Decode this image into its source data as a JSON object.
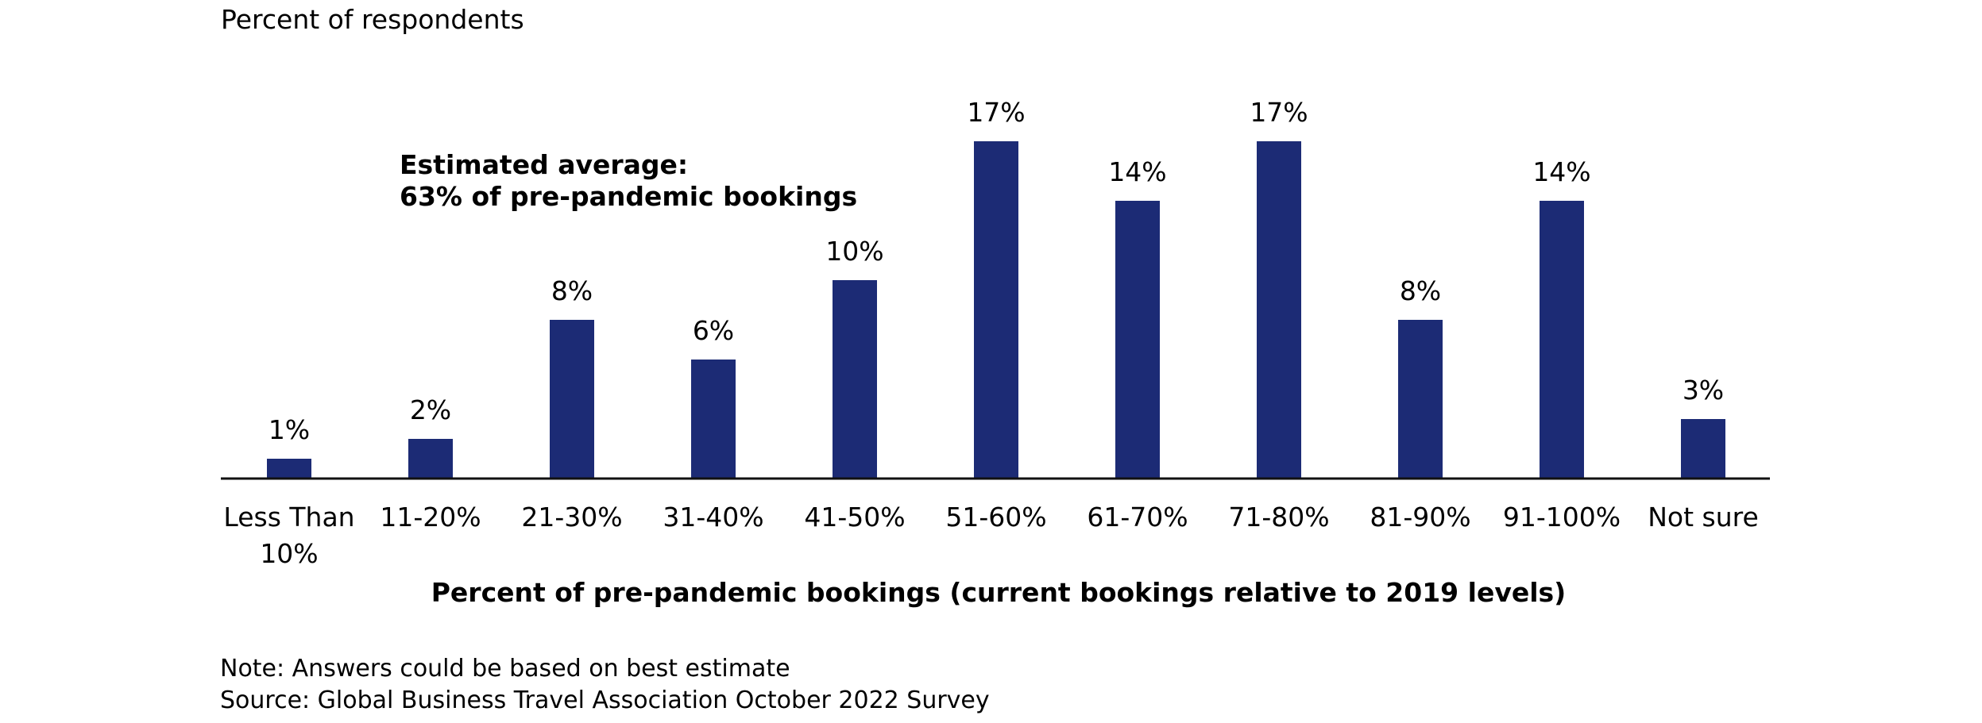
{
  "colors": {
    "bar": "#1c2b75",
    "axis": "#111111",
    "text": "#111111"
  },
  "chart_data": {
    "type": "bar",
    "ylabel": "Percent of respondents",
    "xlabel": "Percent of pre-pandemic bookings (current bookings relative to 2019 levels)",
    "annotation": [
      "Estimated average:",
      "63% of pre-pandemic bookings"
    ],
    "categories": [
      [
        "Less Than",
        "10%"
      ],
      [
        "11-20%"
      ],
      [
        "21-30%"
      ],
      [
        "31-40%"
      ],
      [
        "41-50%"
      ],
      [
        "51-60%"
      ],
      [
        "61-70%"
      ],
      [
        "71-80%"
      ],
      [
        "81-90%"
      ],
      [
        "91-100%"
      ],
      [
        "Not sure"
      ]
    ],
    "values": [
      1,
      2,
      8,
      6,
      10,
      17,
      14,
      17,
      8,
      14,
      3
    ],
    "value_labels": [
      "1%",
      "2%",
      "8%",
      "6%",
      "10%",
      "17%",
      "14%",
      "17%",
      "8%",
      "14%",
      "3%"
    ],
    "unit": "%",
    "ylim": [
      0,
      17
    ],
    "grid": false,
    "legend": "none"
  },
  "footer": {
    "note": "Note: Answers could be based on best estimate",
    "source": "Source: Global Business Travel Association October 2022 Survey"
  }
}
